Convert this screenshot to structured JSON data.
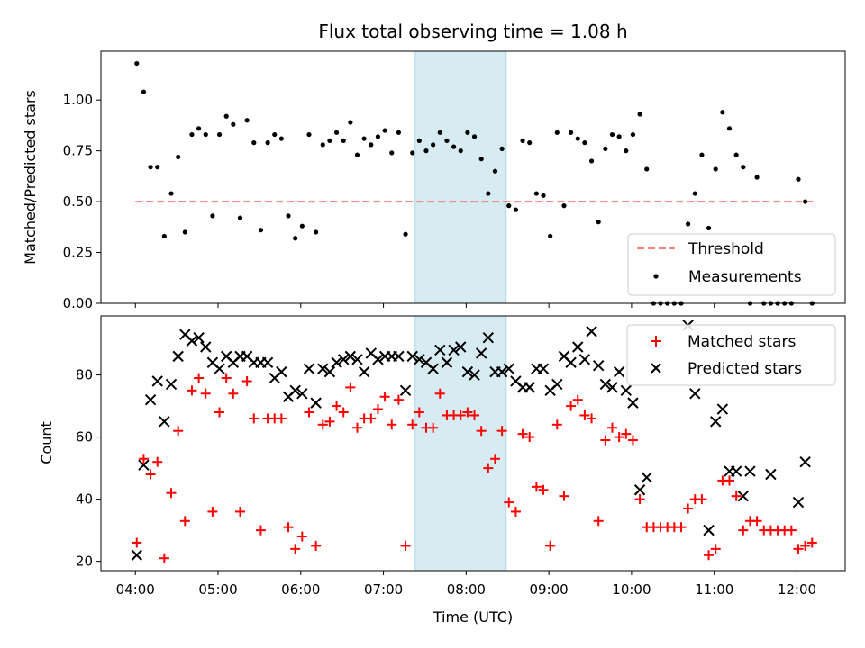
{
  "colors": {
    "threshold": "#f08080",
    "measurements": "#000000",
    "matched": "#ff0000",
    "predicted": "#000000",
    "highlight": "#add8e6"
  },
  "chart_data": [
    {
      "type": "scatter",
      "panel": "top",
      "title": "Flux total observing time = 1.08 h",
      "xlabel": "",
      "ylabel": "Matched/Predicted stars",
      "xlim": [
        "03:35",
        "12:35"
      ],
      "ylim": [
        0,
        1.24
      ],
      "yticks": [
        0.0,
        0.25,
        0.5,
        0.75,
        1.0
      ],
      "ytick_labels": [
        "0.00",
        "0.25",
        "0.50",
        "0.75",
        "1.00"
      ],
      "highlight_span": [
        "07:23",
        "08:29"
      ],
      "legend": {
        "placement": "lower right",
        "entries": [
          "Threshold",
          "Measurements"
        ]
      },
      "series": [
        {
          "name": "Threshold",
          "kind": "dashed-line",
          "x": [
            "04:00",
            "12:13"
          ],
          "y": [
            0.5,
            0.5
          ]
        },
        {
          "name": "Measurements",
          "kind": "dots",
          "x": [
            "04:01",
            "04:06",
            "04:11",
            "04:16",
            "04:21",
            "04:26",
            "04:31",
            "04:36",
            "04:41",
            "04:46",
            "04:51",
            "04:56",
            "05:01",
            "05:06",
            "05:11",
            "05:16",
            "05:21",
            "05:26",
            "05:31",
            "05:36",
            "05:41",
            "05:46",
            "05:51",
            "05:56",
            "06:01",
            "06:06",
            "06:11",
            "06:16",
            "06:21",
            "06:26",
            "06:31",
            "06:36",
            "06:41",
            "06:46",
            "06:51",
            "06:56",
            "07:01",
            "07:06",
            "07:11",
            "07:16",
            "07:21",
            "07:26",
            "07:31",
            "07:36",
            "07:41",
            "07:46",
            "07:51",
            "07:56",
            "08:01",
            "08:06",
            "08:11",
            "08:16",
            "08:21",
            "08:26",
            "08:31",
            "08:36",
            "08:41",
            "08:46",
            "08:51",
            "08:56",
            "09:01",
            "09:06",
            "09:11",
            "09:16",
            "09:21",
            "09:26",
            "09:31",
            "09:36",
            "09:41",
            "09:46",
            "09:51",
            "09:56",
            "10:01",
            "10:06",
            "10:11",
            "10:16",
            "10:21",
            "10:26",
            "10:31",
            "10:36",
            "10:41",
            "10:46",
            "10:51",
            "10:56",
            "11:01",
            "11:06",
            "11:11",
            "11:16",
            "11:21",
            "11:26",
            "11:31",
            "11:36",
            "11:41",
            "11:46",
            "11:51",
            "11:56",
            "12:01",
            "12:06",
            "12:11"
          ],
          "y": [
            1.18,
            1.04,
            0.67,
            0.67,
            0.33,
            0.54,
            0.72,
            0.35,
            0.83,
            0.86,
            0.83,
            0.43,
            0.83,
            0.92,
            0.88,
            0.42,
            0.9,
            0.79,
            0.36,
            0.79,
            0.83,
            0.81,
            0.43,
            0.32,
            0.38,
            0.83,
            0.35,
            0.78,
            0.8,
            0.84,
            0.8,
            0.89,
            0.73,
            0.81,
            0.78,
            0.82,
            0.85,
            0.74,
            0.84,
            0.34,
            0.74,
            0.8,
            0.75,
            0.78,
            0.84,
            0.8,
            0.77,
            0.75,
            0.84,
            0.82,
            0.71,
            0.54,
            0.65,
            0.76,
            0.48,
            0.46,
            0.8,
            0.79,
            0.54,
            0.53,
            0.33,
            0.84,
            0.48,
            0.84,
            0.81,
            0.79,
            0.7,
            0.4,
            0.76,
            0.83,
            0.82,
            0.75,
            0.83,
            0.93,
            0.66,
            0.0,
            0.0,
            0.0,
            0.0,
            0.0,
            0.39,
            0.54,
            0.73,
            0.37,
            0.66,
            0.94,
            0.86,
            0.73,
            0.67,
            0.0,
            0.62,
            0.0,
            0.0,
            0.0,
            0.0,
            0.0,
            0.61,
            0.5,
            0.0
          ]
        }
      ]
    },
    {
      "type": "scatter",
      "panel": "bottom",
      "xlabel": "Time (UTC)",
      "ylabel": "Count",
      "xlim": [
        "03:35",
        "12:35"
      ],
      "ylim": [
        17,
        99
      ],
      "yticks": [
        20,
        40,
        60,
        80
      ],
      "ytick_labels": [
        "20",
        "40",
        "60",
        "80"
      ],
      "xticks": [
        "04:00",
        "05:00",
        "06:00",
        "07:00",
        "08:00",
        "09:00",
        "10:00",
        "11:00",
        "12:00"
      ],
      "highlight_span": [
        "07:23",
        "08:29"
      ],
      "legend": {
        "placement": "upper right",
        "entries": [
          "Matched stars",
          "Predicted stars"
        ]
      },
      "series": [
        {
          "name": "Matched stars",
          "marker": "plus",
          "x": [
            "04:01",
            "04:06",
            "04:11",
            "04:16",
            "04:21",
            "04:26",
            "04:31",
            "04:36",
            "04:41",
            "04:46",
            "04:51",
            "04:56",
            "05:01",
            "05:06",
            "05:11",
            "05:16",
            "05:21",
            "05:26",
            "05:31",
            "05:36",
            "05:41",
            "05:46",
            "05:51",
            "05:56",
            "06:01",
            "06:06",
            "06:11",
            "06:16",
            "06:21",
            "06:26",
            "06:31",
            "06:36",
            "06:41",
            "06:46",
            "06:51",
            "06:56",
            "07:01",
            "07:06",
            "07:11",
            "07:16",
            "07:21",
            "07:26",
            "07:31",
            "07:36",
            "07:41",
            "07:46",
            "07:51",
            "07:56",
            "08:01",
            "08:06",
            "08:11",
            "08:16",
            "08:21",
            "08:26",
            "08:31",
            "08:36",
            "08:41",
            "08:46",
            "08:51",
            "08:56",
            "09:01",
            "09:06",
            "09:11",
            "09:16",
            "09:21",
            "09:26",
            "09:31",
            "09:36",
            "09:41",
            "09:46",
            "09:51",
            "09:56",
            "10:01",
            "10:06",
            "10:11",
            "10:16",
            "10:21",
            "10:26",
            "10:31",
            "10:36",
            "10:41",
            "10:46",
            "10:51",
            "10:56",
            "11:01",
            "11:06",
            "11:11",
            "11:16",
            "11:21",
            "11:26",
            "11:31",
            "11:36",
            "11:41",
            "11:46",
            "11:51",
            "11:56",
            "12:01",
            "12:06",
            "12:11"
          ],
          "y": [
            26,
            53,
            48,
            52,
            21,
            42,
            62,
            33,
            75,
            79,
            74,
            36,
            68,
            79,
            74,
            36,
            78,
            66,
            30,
            66,
            66,
            66,
            31,
            24,
            28,
            68,
            25,
            64,
            65,
            70,
            68,
            76,
            63,
            66,
            66,
            69,
            73,
            64,
            72,
            25,
            64,
            68,
            63,
            63,
            74,
            67,
            67,
            67,
            68,
            67,
            62,
            50,
            53,
            62,
            39,
            36,
            61,
            60,
            44,
            43,
            25,
            64,
            41,
            70,
            72,
            67,
            66,
            33,
            59,
            63,
            60,
            61,
            59,
            40,
            31,
            31,
            31,
            31,
            31,
            31,
            37,
            40,
            40,
            22,
            24,
            46,
            46,
            41,
            30,
            33,
            33,
            30,
            30,
            30,
            30,
            30,
            24,
            25,
            26
          ]
        },
        {
          "name": "Predicted stars",
          "marker": "x",
          "x": [
            "04:01",
            "04:06",
            "04:11",
            "04:16",
            "04:21",
            "04:26",
            "04:31",
            "04:36",
            "04:41",
            "04:46",
            "04:51",
            "04:56",
            "05:01",
            "05:06",
            "05:11",
            "05:16",
            "05:21",
            "05:26",
            "05:31",
            "05:36",
            "05:41",
            "05:46",
            "05:51",
            "05:56",
            "06:01",
            "06:06",
            "06:11",
            "06:16",
            "06:21",
            "06:26",
            "06:31",
            "06:36",
            "06:41",
            "06:46",
            "06:51",
            "06:56",
            "07:01",
            "07:06",
            "07:11",
            "07:16",
            "07:21",
            "07:26",
            "07:31",
            "07:36",
            "07:41",
            "07:46",
            "07:51",
            "07:56",
            "08:01",
            "08:06",
            "08:11",
            "08:16",
            "08:21",
            "08:26",
            "08:31",
            "08:36",
            "08:41",
            "08:46",
            "08:51",
            "08:56",
            "09:01",
            "09:06",
            "09:11",
            "09:16",
            "09:21",
            "09:26",
            "09:31",
            "09:36",
            "09:41",
            "09:46",
            "09:51",
            "09:56",
            "10:01",
            "10:06",
            "10:11",
            "10:41",
            "10:46",
            "10:56",
            "11:01",
            "11:06",
            "11:11",
            "11:16",
            "11:21",
            "11:26",
            "11:41",
            "12:01",
            "12:06"
          ],
          "y": [
            22,
            51,
            72,
            78,
            65,
            77,
            86,
            93,
            91,
            92,
            89,
            84,
            82,
            86,
            84,
            86,
            86,
            84,
            84,
            84,
            79,
            81,
            73,
            75,
            74,
            82,
            71,
            82,
            81,
            84,
            85,
            86,
            85,
            81,
            87,
            85,
            86,
            86,
            86,
            75,
            86,
            85,
            84,
            82,
            88,
            84,
            88,
            89,
            81,
            80,
            87,
            92,
            81,
            81,
            82,
            78,
            76,
            76,
            82,
            82,
            75,
            77,
            86,
            84,
            89,
            85,
            94,
            83,
            77,
            76,
            81,
            75,
            71,
            43,
            47,
            96,
            74,
            30,
            65,
            69,
            49,
            49,
            41,
            49,
            48,
            39,
            52
          ]
        }
      ]
    }
  ]
}
